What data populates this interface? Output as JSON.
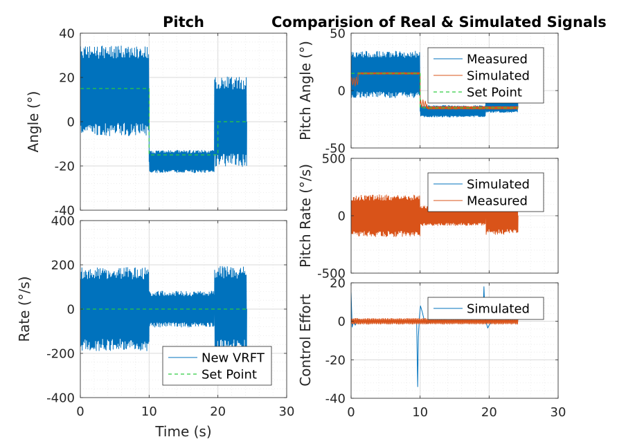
{
  "titles": {
    "left": "Pitch",
    "right": "Comparision of Real & Simulated Signals"
  },
  "colors": {
    "blue": "#0072BD",
    "orange": "#D95319",
    "green": "#2ECC40",
    "grid_major": "#DADADA",
    "grid_minor": "#E8E8E8",
    "axis": "#262626"
  },
  "chart_data": [
    {
      "id": "angle",
      "type": "line",
      "title": "Pitch",
      "xlabel": "",
      "ylabel": "Angle (°)",
      "xlim": [
        0,
        30
      ],
      "ylim": [
        -40,
        40
      ],
      "xticks": [
        0,
        10,
        20,
        30
      ],
      "yticks": [
        -40,
        -20,
        0,
        20,
        40
      ],
      "ytick_labels": [
        "-40",
        "-20",
        "0",
        "20",
        "40"
      ],
      "show_xtick_labels": false,
      "grid": "on (major + minor)",
      "series": [
        {
          "role": "measured",
          "name": "",
          "color": "blue",
          "t_end": 24.2,
          "segments": [
            [
              0,
              10,
              14,
              20,
              9.8
            ],
            [
              10,
              19.5,
              -18,
              5,
              9.3
            ],
            [
              19.5,
              24.2,
              0,
              20,
              9.8
            ]
          ]
        },
        {
          "role": "setpoint",
          "name": "",
          "color": "green",
          "dashed": true,
          "steps": [
            [
              0,
              10,
              15
            ],
            [
              10,
              20,
              -15
            ],
            [
              20,
              24.2,
              0
            ]
          ]
        }
      ]
    },
    {
      "id": "rate",
      "type": "line",
      "xlabel": "Time (s)",
      "ylabel": "Rate (°/s)",
      "xlim": [
        0,
        30
      ],
      "ylim": [
        -400,
        400
      ],
      "xticks": [
        0,
        10,
        20,
        30
      ],
      "xtick_labels": [
        "0",
        "10",
        "20",
        "30"
      ],
      "yticks": [
        -400,
        -200,
        0,
        200,
        400
      ],
      "ytick_labels": [
        "-400",
        "-200",
        "0",
        "200",
        "400"
      ],
      "show_xtick_labels": true,
      "grid": "on (major + minor)",
      "legend": {
        "position": "bottom-right",
        "entries": [
          "New VRFT",
          "Set Point"
        ]
      },
      "series": [
        {
          "role": "measured",
          "name": "New VRFT",
          "color": "blue",
          "t_end": 24.2,
          "segments": [
            [
              0,
              10,
              0,
              185,
              9.8
            ],
            [
              10,
              19.5,
              0,
              80,
              9.3
            ],
            [
              19.5,
              24.2,
              0,
              190,
              9.8
            ]
          ]
        },
        {
          "role": "setpoint",
          "name": "Set Point",
          "color": "green",
          "dashed": true,
          "steps": [
            [
              0,
              24.2,
              0
            ]
          ]
        }
      ]
    },
    {
      "id": "pitch_angle_cmp",
      "type": "line",
      "title": "Comparision of Real & Simulated Signals",
      "ylabel": "Pitch Angle (°)",
      "xlim": [
        0,
        30
      ],
      "ylim": [
        -50,
        50
      ],
      "xticks": [
        0,
        10,
        20,
        30
      ],
      "yticks": [
        -50,
        0,
        50
      ],
      "ytick_labels": [
        "-50",
        "0",
        "50"
      ],
      "show_xtick_labels": false,
      "grid": "on (major + minor)",
      "legend": {
        "position": "top-right",
        "entries": [
          "Measured",
          "Simulated",
          "Set Point"
        ]
      },
      "series": [
        {
          "role": "measured",
          "name": "Measured",
          "color": "blue",
          "t_end": 24.2,
          "segments": [
            [
              0,
              10,
              14,
              20,
              9.8
            ],
            [
              10,
              19.5,
              -18,
              5,
              9.3
            ],
            [
              19.5,
              24.2,
              -14,
              5,
              9.3
            ]
          ]
        },
        {
          "role": "simulated",
          "name": "Simulated",
          "color": "orange",
          "t_end": 24.2,
          "segments": [
            [
              0,
              1,
              8,
              4,
              3
            ],
            [
              1,
              10,
              15,
              0.8,
              9
            ],
            [
              10,
              11,
              -12,
              4,
              3
            ],
            [
              11,
              19.5,
              -15,
              1.2,
              9
            ],
            [
              19.5,
              24.2,
              -15,
              1.2,
              9
            ]
          ]
        },
        {
          "role": "setpoint",
          "name": "Set Point",
          "color": "green",
          "dashed": true,
          "steps": [
            [
              0,
              10,
              15
            ],
            [
              10,
              24.2,
              -15
            ]
          ]
        }
      ]
    },
    {
      "id": "pitch_rate_cmp",
      "type": "line",
      "ylabel": "Pitch Rate (°/s)",
      "xlim": [
        0,
        30
      ],
      "ylim": [
        -500,
        500
      ],
      "xticks": [
        0,
        10,
        20,
        30
      ],
      "yticks": [
        -500,
        0,
        500
      ],
      "ytick_labels": [
        "-500",
        "0",
        "500"
      ],
      "show_xtick_labels": false,
      "grid": "on (major + minor)",
      "legend": {
        "position": "top-right",
        "entries": [
          "Simulated",
          "Measured"
        ]
      },
      "series": [
        {
          "role": "simulated",
          "name": "Simulated",
          "color": "blue",
          "t_end": 24.2,
          "segments": [
            [
              0,
              9.8,
              0,
              2,
              5
            ],
            [
              9.8,
              11,
              0,
              40,
              3
            ],
            [
              11,
              19,
              0,
              6,
              5
            ],
            [
              19,
              20.2,
              0,
              35,
              3
            ],
            [
              20.2,
              24.2,
              0,
              4,
              5
            ]
          ]
        },
        {
          "role": "measured",
          "name": "Measured",
          "color": "orange",
          "t_end": 24.2,
          "segments": [
            [
              0,
              10,
              0,
              180,
              9.8
            ],
            [
              10,
              19.5,
              0,
              85,
              9.3
            ],
            [
              19.5,
              24.2,
              0,
              160,
              9.8
            ]
          ]
        }
      ]
    },
    {
      "id": "control_effort",
      "type": "line",
      "ylabel": "Control Effort",
      "xlim": [
        0,
        30
      ],
      "ylim": [
        -40,
        20
      ],
      "xticks": [
        0,
        10,
        20,
        30
      ],
      "xtick_labels": [
        "0",
        "10",
        "20",
        "30"
      ],
      "yticks": [
        -40,
        -20,
        0,
        20
      ],
      "ytick_labels": [
        "-40",
        "-20",
        "0",
        "20"
      ],
      "show_xtick_labels": true,
      "grid": "on (major + minor)",
      "legend": {
        "position": "top-right",
        "entries": [
          "Simulated"
        ]
      },
      "series": [
        {
          "role": "simulated",
          "name": "Simulated",
          "color": "blue",
          "t_end": 24.2,
          "points": [
            [
              0,
              15
            ],
            [
              0.15,
              -3
            ],
            [
              0.4,
              0.5
            ],
            [
              0.6,
              -2
            ],
            [
              1,
              1
            ],
            [
              1.5,
              0
            ],
            [
              9.5,
              0
            ],
            [
              9.65,
              -34
            ],
            [
              9.75,
              -8
            ],
            [
              9.9,
              2
            ],
            [
              10.05,
              8
            ],
            [
              10.3,
              5
            ],
            [
              10.6,
              0.5
            ],
            [
              11,
              -1
            ],
            [
              12,
              0
            ],
            [
              19.1,
              0
            ],
            [
              19.25,
              18
            ],
            [
              19.4,
              2
            ],
            [
              19.6,
              -1
            ],
            [
              19.8,
              -3.5
            ],
            [
              20,
              -2
            ],
            [
              20.3,
              -0.5
            ],
            [
              21,
              0
            ],
            [
              24.2,
              0
            ]
          ]
        },
        {
          "role": "measured",
          "name": "",
          "color": "orange",
          "t_end": 24.2,
          "segments": [
            [
              0,
              24.2,
              0,
              1.5,
              6.5
            ]
          ]
        }
      ]
    }
  ]
}
